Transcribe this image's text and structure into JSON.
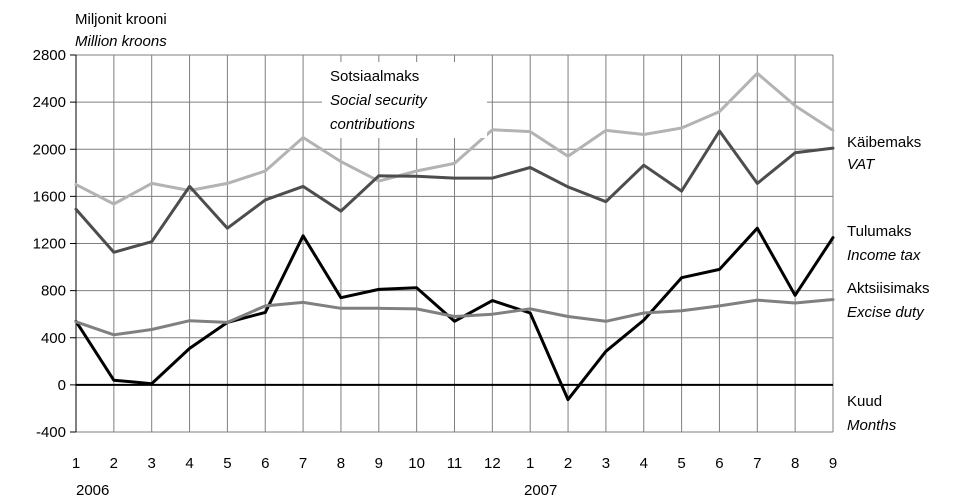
{
  "chart_data": {
    "type": "line",
    "ylabel": "Miljonit krooni",
    "ylabel_en": "Million kroons",
    "xlabel": "Kuud",
    "xlabel_en": "Months",
    "x": [
      "1",
      "2",
      "3",
      "4",
      "5",
      "6",
      "7",
      "8",
      "9",
      "10",
      "11",
      "12",
      "1",
      "2",
      "3",
      "4",
      "5",
      "6",
      "7",
      "8",
      "9"
    ],
    "year_labels": [
      "2006",
      "2007"
    ],
    "ylim": [
      -400,
      2800
    ],
    "yticks": [
      -400,
      0,
      400,
      800,
      1200,
      1600,
      2000,
      2400,
      2800
    ],
    "grid": true,
    "series": [
      {
        "name": "Sotsiaalmaks",
        "name_en": "Social security contributions",
        "color": "#b3b3b3",
        "values": [
          1700,
          1535,
          1710,
          1650,
          1710,
          1815,
          2100,
          1895,
          1730,
          1815,
          1880,
          2165,
          2150,
          1940,
          2160,
          2125,
          2180,
          2320,
          2645,
          2370,
          2160
        ]
      },
      {
        "name": "Käibemaks",
        "name_en": "VAT",
        "color": "#4d4d4d",
        "values": [
          1490,
          1125,
          1215,
          1685,
          1330,
          1570,
          1685,
          1475,
          1775,
          1770,
          1755,
          1755,
          1845,
          1680,
          1555,
          1865,
          1645,
          2155,
          1710,
          1970,
          2010
        ]
      },
      {
        "name": "Tulumaks",
        "name_en": "Income tax",
        "color": "#000000",
        "values": [
          540,
          40,
          10,
          310,
          530,
          615,
          1265,
          740,
          810,
          825,
          540,
          715,
          610,
          -125,
          285,
          550,
          910,
          980,
          1330,
          760,
          1250
        ]
      },
      {
        "name": "Aktsiisimaks",
        "name_en": "Excise duty",
        "color": "#808080",
        "values": [
          535,
          425,
          470,
          545,
          530,
          670,
          700,
          650,
          650,
          645,
          580,
          600,
          645,
          580,
          540,
          610,
          630,
          670,
          720,
          695,
          725
        ]
      }
    ],
    "annotations": {
      "social_line1": "Sotsiaalmaks",
      "social_line2": "Social security",
      "social_line3": "contributions"
    }
  }
}
